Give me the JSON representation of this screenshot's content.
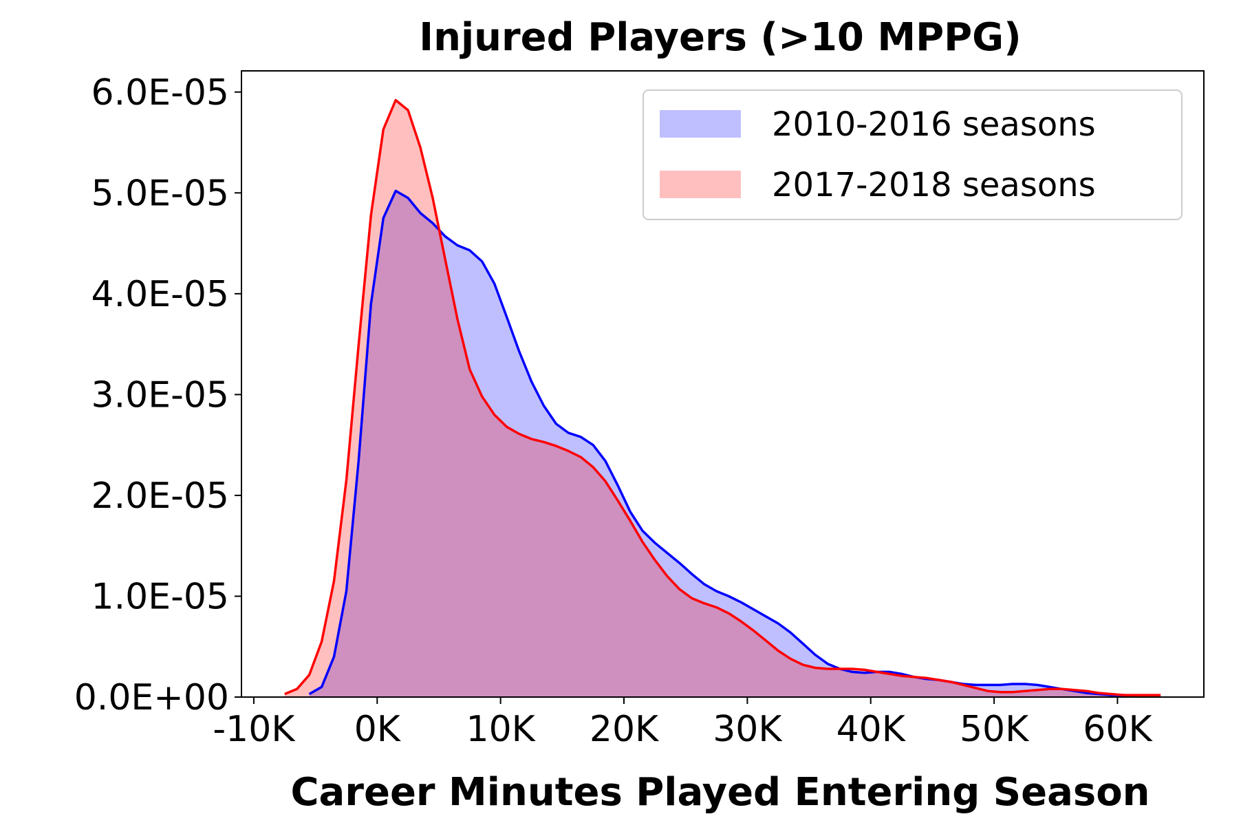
{
  "chart_data": {
    "type": "area",
    "title": "Injured Players (>10 MPPG)",
    "xlabel": "Career Minutes Played Entering Season",
    "ylabel": "",
    "xlim": [
      -11000,
      67000
    ],
    "ylim": [
      0,
      6.21e-05
    ],
    "x_ticks": [
      -10000,
      0,
      10000,
      20000,
      30000,
      40000,
      50000,
      60000
    ],
    "x_tick_labels": [
      "-10K",
      "0K",
      "10K",
      "20K",
      "30K",
      "40K",
      "50K",
      "60K"
    ],
    "y_ticks": [
      0,
      1e-05,
      2e-05,
      3e-05,
      4e-05,
      5e-05,
      6e-05
    ],
    "y_tick_labels": [
      "0.0E+00",
      "1.0E-05",
      "2.0E-05",
      "3.0E-05",
      "4.0E-05",
      "5.0E-05",
      "6.0E-05"
    ],
    "grid": false,
    "legend_position": "top-right",
    "series": [
      {
        "name": "2010-2016 seasons",
        "line_color": "#0000ff",
        "fill_color": "#0000ff",
        "fill_opacity": 0.25,
        "x": [
          -5500,
          -4500,
          -3500,
          -2500,
          -1500,
          -500,
          500,
          1500,
          2500,
          3500,
          4500,
          5500,
          6500,
          7500,
          8500,
          9500,
          10500,
          11500,
          12500,
          13500,
          14500,
          15500,
          16500,
          17500,
          18500,
          19500,
          20500,
          21500,
          22500,
          23500,
          24500,
          25500,
          26500,
          27500,
          28500,
          29500,
          30500,
          31500,
          32500,
          33500,
          34500,
          35500,
          36500,
          37500,
          38500,
          39500,
          40500,
          41500,
          42500,
          43500,
          44500,
          45500,
          46500,
          47500,
          48500,
          49500,
          50500,
          51500,
          52500,
          53500,
          54500,
          55500,
          56500,
          57500,
          58500,
          59500,
          60500,
          61500
        ],
        "values": [
          3e-07,
          1e-06,
          4e-06,
          1.05e-05,
          2.35e-05,
          3.9e-05,
          4.75e-05,
          5.02e-05,
          4.95e-05,
          4.8e-05,
          4.7e-05,
          4.57e-05,
          4.48e-05,
          4.43e-05,
          4.32e-05,
          4.1e-05,
          3.77e-05,
          3.43e-05,
          3.13e-05,
          2.89e-05,
          2.71e-05,
          2.62e-05,
          2.58e-05,
          2.5e-05,
          2.34e-05,
          2.1e-05,
          1.84e-05,
          1.65e-05,
          1.53e-05,
          1.43e-05,
          1.33e-05,
          1.22e-05,
          1.12e-05,
          1.05e-05,
          1e-05,
          9.4e-06,
          8.7e-06,
          8e-06,
          7.3e-06,
          6.4e-06,
          5.3e-06,
          4.2e-06,
          3.3e-06,
          2.8e-06,
          2.5e-06,
          2.4e-06,
          2.5e-06,
          2.5e-06,
          2.3e-06,
          2e-06,
          1.8e-06,
          1.7e-06,
          1.5e-06,
          1.3e-06,
          1.2e-06,
          1.2e-06,
          1.2e-06,
          1.3e-06,
          1.3e-06,
          1.2e-06,
          1e-06,
          8e-07,
          6e-07,
          4e-07,
          3e-07,
          2e-07,
          2e-07,
          1e-07
        ]
      },
      {
        "name": "2017-2018 seasons",
        "line_color": "#ff0000",
        "fill_color": "#ff0000",
        "fill_opacity": 0.25,
        "x": [
          -7500,
          -6500,
          -5500,
          -4500,
          -3500,
          -2500,
          -1500,
          -500,
          500,
          1500,
          2500,
          3500,
          4500,
          5500,
          6500,
          7500,
          8500,
          9500,
          10500,
          11500,
          12500,
          13500,
          14500,
          15500,
          16500,
          17500,
          18500,
          19500,
          20500,
          21500,
          22500,
          23500,
          24500,
          25500,
          26500,
          27500,
          28500,
          29500,
          30500,
          31500,
          32500,
          33500,
          34500,
          35500,
          36500,
          37500,
          38500,
          39500,
          40500,
          41500,
          42500,
          43500,
          44500,
          45500,
          46500,
          47500,
          48500,
          49500,
          50500,
          51500,
          52500,
          53500,
          54500,
          55500,
          56500,
          57500,
          58500,
          59500,
          60500,
          61500,
          62500,
          63500
        ],
        "values": [
          3e-07,
          8e-07,
          2.2e-06,
          5.5e-06,
          1.15e-05,
          2.15e-05,
          3.5e-05,
          4.78e-05,
          5.63e-05,
          5.92e-05,
          5.82e-05,
          5.45e-05,
          4.95e-05,
          4.35e-05,
          3.75e-05,
          3.25e-05,
          2.98e-05,
          2.8e-05,
          2.68e-05,
          2.61e-05,
          2.56e-05,
          2.53e-05,
          2.49e-05,
          2.44e-05,
          2.38e-05,
          2.28e-05,
          2.14e-05,
          1.95e-05,
          1.75e-05,
          1.54e-05,
          1.36e-05,
          1.2e-05,
          1.07e-05,
          9.8e-06,
          9.3e-06,
          8.9e-06,
          8.3e-06,
          7.5e-06,
          6.6e-06,
          5.6e-06,
          4.6e-06,
          3.8e-06,
          3.2e-06,
          2.9e-06,
          2.8e-06,
          2.8e-06,
          2.8e-06,
          2.7e-06,
          2.5e-06,
          2.3e-06,
          2.1e-06,
          2e-06,
          1.9e-06,
          1.7e-06,
          1.5e-06,
          1.2e-06,
          9e-07,
          6e-07,
          5e-07,
          5e-07,
          6e-07,
          7e-07,
          8e-07,
          8e-07,
          7e-07,
          6e-07,
          4e-07,
          3e-07,
          2e-07,
          2e-07,
          2e-07,
          2e-07
        ]
      }
    ]
  }
}
